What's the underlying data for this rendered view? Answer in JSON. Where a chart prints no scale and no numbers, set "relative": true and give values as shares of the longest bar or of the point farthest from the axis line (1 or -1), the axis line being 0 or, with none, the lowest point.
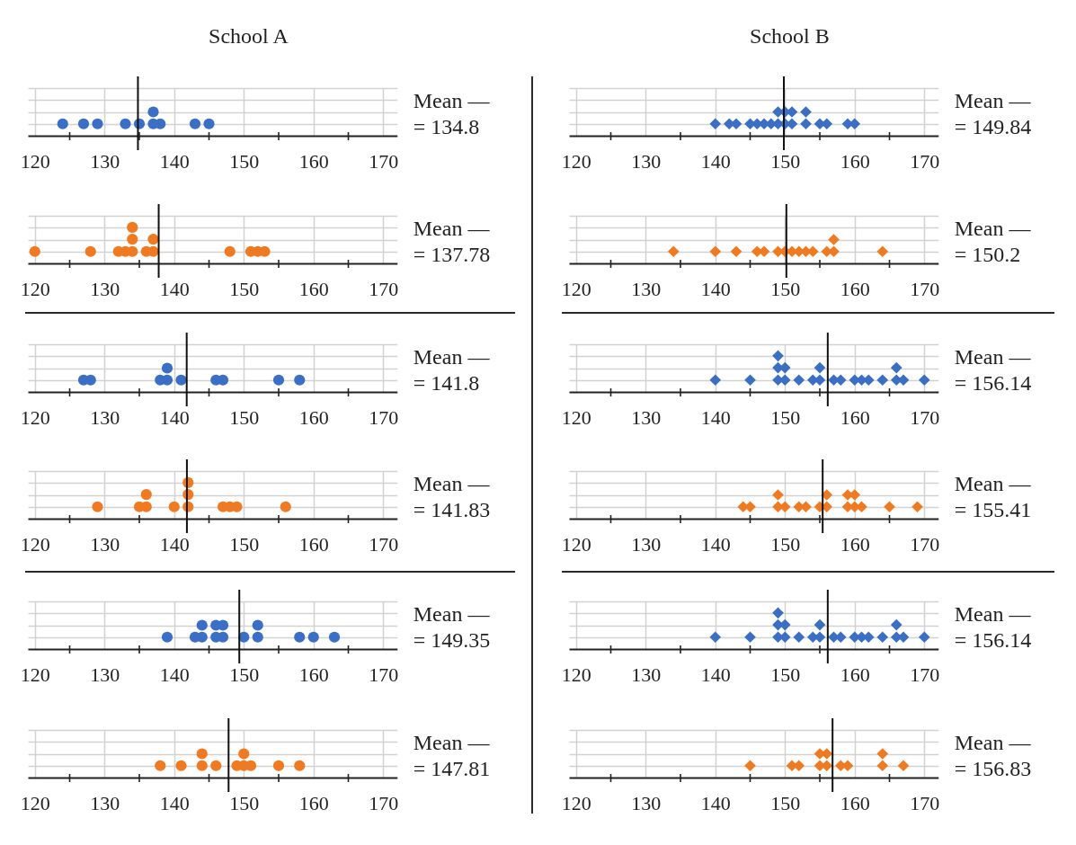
{
  "chart_data": [
    {
      "type": "scatter",
      "title": "School A",
      "relative": true,
      "x": [
        124,
        127,
        129,
        133,
        135,
        137,
        137,
        138,
        143,
        145
      ],
      "series": [
        {
          "color": "#3a6fc5",
          "values": [
            0.5,
            0.5,
            0.5,
            0.5,
            0.5,
            0.5,
            1,
            0.5,
            0.5,
            0.5
          ]
        }
      ],
      "xlim": [
        119,
        172
      ],
      "xticks": [
        120,
        {
          "value": 125,
          "label": null
        },
        130,
        {
          "value": 135,
          "label": null
        },
        140,
        {
          "value": 145,
          "label": null
        },
        150,
        {
          "value": 155,
          "label": null
        },
        160,
        {
          "value": 165,
          "label": null
        },
        170
      ],
      "tick_labels": "x",
      "grid": true,
      "marker": "circle",
      "ref_lines": [
        {
          "axis": "x",
          "value": 134.8,
          "label": "Mean —\n= 134.8",
          "color": "#111111"
        }
      ]
    },
    {
      "type": "scatter",
      "title": "School B",
      "relative": true,
      "x": [
        140,
        142,
        143,
        145,
        146,
        147,
        148,
        149,
        149,
        150,
        150,
        151,
        151,
        153,
        153,
        155,
        156,
        159,
        160
      ],
      "series": [
        {
          "color": "#3a6fc5",
          "values": [
            0.5,
            0.5,
            0.5,
            0.5,
            0.5,
            0.5,
            0.5,
            0.5,
            1,
            0.5,
            1,
            0.5,
            1,
            0.5,
            1,
            0.5,
            0.5,
            0.5,
            0.5
          ]
        }
      ],
      "xlim": [
        119,
        172
      ],
      "xticks": [
        120,
        {
          "value": 125,
          "label": null
        },
        130,
        {
          "value": 135,
          "label": null
        },
        140,
        {
          "value": 145,
          "label": null
        },
        150,
        {
          "value": 155,
          "label": null
        },
        160,
        {
          "value": 165,
          "label": null
        },
        170
      ],
      "tick_labels": "x",
      "grid": true,
      "marker": "diamond",
      "ref_lines": [
        {
          "axis": "x",
          "value": 149.84,
          "label": "Mean —\n= 149.84",
          "color": "#111111"
        }
      ]
    },
    {
      "type": "scatter",
      "relative": true,
      "x": [
        120,
        128,
        132,
        133,
        134,
        134,
        134,
        136,
        137,
        137,
        148,
        151,
        152,
        153
      ],
      "series": [
        {
          "color": "#f07a22",
          "values": [
            0.33,
            0.33,
            0.33,
            0.33,
            0.33,
            0.67,
            1,
            0.33,
            0.33,
            0.67,
            0.33,
            0.33,
            0.33,
            0.33
          ]
        }
      ],
      "xlim": [
        119,
        172
      ],
      "xticks": [
        120,
        {
          "value": 125,
          "label": null
        },
        130,
        {
          "value": 135,
          "label": null
        },
        140,
        {
          "value": 145,
          "label": null
        },
        150,
        {
          "value": 155,
          "label": null
        },
        160,
        {
          "value": 165,
          "label": null
        },
        170
      ],
      "tick_labels": "x",
      "grid": true,
      "marker": "circle",
      "ref_lines": [
        {
          "axis": "x",
          "value": 137.78,
          "label": "Mean —\n= 137.78",
          "color": "#111111"
        }
      ]
    },
    {
      "type": "scatter",
      "relative": true,
      "x": [
        134,
        140,
        143,
        146,
        147,
        149,
        150,
        151,
        152,
        153,
        154,
        156,
        157,
        157,
        164
      ],
      "series": [
        {
          "color": "#f07a22",
          "values": [
            0.5,
            0.5,
            0.5,
            0.5,
            0.5,
            0.5,
            0.5,
            0.5,
            0.5,
            0.5,
            0.5,
            0.5,
            0.5,
            1,
            0.5
          ]
        }
      ],
      "xlim": [
        119,
        172
      ],
      "xticks": [
        120,
        {
          "value": 125,
          "label": null
        },
        130,
        {
          "value": 135,
          "label": null
        },
        140,
        {
          "value": 145,
          "label": null
        },
        150,
        {
          "value": 155,
          "label": null
        },
        160,
        {
          "value": 165,
          "label": null
        },
        170
      ],
      "tick_labels": "x",
      "grid": true,
      "marker": "diamond",
      "ref_lines": [
        {
          "axis": "x",
          "value": 150.2,
          "label": "Mean —\n= 150.2",
          "color": "#111111"
        }
      ]
    },
    {
      "type": "scatter",
      "relative": true,
      "x": [
        127,
        128,
        138,
        139,
        139,
        141,
        146,
        147,
        155,
        158
      ],
      "series": [
        {
          "color": "#3a6fc5",
          "values": [
            0.5,
            0.5,
            0.5,
            0.5,
            1,
            0.5,
            0.5,
            0.5,
            0.5,
            0.5
          ]
        }
      ],
      "xlim": [
        119,
        172
      ],
      "xticks": [
        120,
        {
          "value": 125,
          "label": null
        },
        130,
        {
          "value": 135,
          "label": null
        },
        140,
        {
          "value": 145,
          "label": null
        },
        150,
        {
          "value": 155,
          "label": null
        },
        160,
        {
          "value": 165,
          "label": null
        },
        170
      ],
      "tick_labels": "x",
      "grid": true,
      "marker": "circle",
      "ref_lines": [
        {
          "axis": "x",
          "value": 141.8,
          "label": "Mean —\n= 141.8",
          "color": "#111111"
        }
      ]
    },
    {
      "type": "scatter",
      "relative": true,
      "x": [
        140,
        145,
        149,
        149,
        149,
        150,
        150,
        152,
        154,
        155,
        155,
        157,
        158,
        160,
        161,
        162,
        164,
        166,
        166,
        167,
        170
      ],
      "series": [
        {
          "color": "#3a6fc5",
          "values": [
            0.33,
            0.33,
            0.33,
            0.67,
            1,
            0.33,
            0.67,
            0.33,
            0.33,
            0.33,
            0.67,
            0.33,
            0.33,
            0.33,
            0.33,
            0.33,
            0.33,
            0.33,
            0.67,
            0.33,
            0.33
          ]
        }
      ],
      "xlim": [
        119,
        172
      ],
      "xticks": [
        120,
        {
          "value": 125,
          "label": null
        },
        130,
        {
          "value": 135,
          "label": null
        },
        140,
        {
          "value": 145,
          "label": null
        },
        150,
        {
          "value": 155,
          "label": null
        },
        160,
        {
          "value": 165,
          "label": null
        },
        170
      ],
      "tick_labels": "x",
      "grid": true,
      "marker": "diamond",
      "ref_lines": [
        {
          "axis": "x",
          "value": 156.14,
          "label": "Mean —\n= 156.14",
          "color": "#111111"
        }
      ]
    },
    {
      "type": "scatter",
      "relative": true,
      "x": [
        129,
        135,
        136,
        136,
        140,
        142,
        142,
        142,
        147,
        148,
        149,
        156
      ],
      "series": [
        {
          "color": "#f07a22",
          "values": [
            0.33,
            0.33,
            0.33,
            0.67,
            0.33,
            0.33,
            0.67,
            1,
            0.33,
            0.33,
            0.33,
            0.33
          ]
        }
      ],
      "xlim": [
        119,
        172
      ],
      "xticks": [
        120,
        {
          "value": 125,
          "label": null
        },
        130,
        {
          "value": 135,
          "label": null
        },
        140,
        {
          "value": 145,
          "label": null
        },
        150,
        {
          "value": 155,
          "label": null
        },
        160,
        {
          "value": 165,
          "label": null
        },
        170
      ],
      "tick_labels": "x",
      "grid": true,
      "marker": "circle",
      "ref_lines": [
        {
          "axis": "x",
          "value": 141.83,
          "label": "Mean —\n= 141.83",
          "color": "#111111"
        }
      ]
    },
    {
      "type": "scatter",
      "relative": true,
      "x": [
        144,
        145,
        149,
        149,
        150,
        152,
        153,
        155,
        156,
        156,
        159,
        159,
        160,
        160,
        161,
        165,
        169
      ],
      "series": [
        {
          "color": "#f07a22",
          "values": [
            0.5,
            0.5,
            0.5,
            1,
            0.5,
            0.5,
            0.5,
            0.5,
            0.5,
            1,
            0.5,
            1,
            0.5,
            1,
            0.5,
            0.5,
            0.5
          ]
        }
      ],
      "xlim": [
        119,
        172
      ],
      "xticks": [
        120,
        {
          "value": 125,
          "label": null
        },
        130,
        {
          "value": 135,
          "label": null
        },
        140,
        {
          "value": 145,
          "label": null
        },
        150,
        {
          "value": 155,
          "label": null
        },
        160,
        {
          "value": 165,
          "label": null
        },
        170
      ],
      "tick_labels": "x",
      "grid": true,
      "marker": "diamond",
      "ref_lines": [
        {
          "axis": "x",
          "value": 155.41,
          "label": "Mean —\n= 155.41",
          "color": "#111111"
        }
      ]
    },
    {
      "type": "scatter",
      "relative": true,
      "x": [
        139,
        143,
        144,
        144,
        146,
        146,
        147,
        147,
        150,
        152,
        152,
        158,
        160,
        163
      ],
      "series": [
        {
          "color": "#3a6fc5",
          "values": [
            0.5,
            0.5,
            0.5,
            1,
            0.5,
            1,
            0.5,
            1,
            0.5,
            0.5,
            1,
            0.5,
            0.5,
            0.5
          ]
        }
      ],
      "xlim": [
        119,
        172
      ],
      "xticks": [
        120,
        {
          "value": 125,
          "label": null
        },
        130,
        {
          "value": 135,
          "label": null
        },
        140,
        {
          "value": 145,
          "label": null
        },
        150,
        {
          "value": 155,
          "label": null
        },
        160,
        {
          "value": 165,
          "label": null
        },
        170
      ],
      "tick_labels": "x",
      "grid": true,
      "marker": "circle",
      "ref_lines": [
        {
          "axis": "x",
          "value": 149.35,
          "label": "Mean —\n= 149.35",
          "color": "#111111"
        }
      ]
    },
    {
      "type": "scatter",
      "relative": true,
      "x": [
        140,
        145,
        149,
        149,
        149,
        150,
        150,
        152,
        154,
        155,
        155,
        157,
        158,
        160,
        161,
        162,
        164,
        166,
        166,
        167,
        170
      ],
      "series": [
        {
          "color": "#3a6fc5",
          "values": [
            0.33,
            0.33,
            0.33,
            0.67,
            1,
            0.33,
            0.67,
            0.33,
            0.33,
            0.33,
            0.67,
            0.33,
            0.33,
            0.33,
            0.33,
            0.33,
            0.33,
            0.33,
            0.67,
            0.33,
            0.33
          ]
        }
      ],
      "xlim": [
        119,
        172
      ],
      "xticks": [
        120,
        {
          "value": 125,
          "label": null
        },
        130,
        {
          "value": 135,
          "label": null
        },
        140,
        {
          "value": 145,
          "label": null
        },
        150,
        {
          "value": 155,
          "label": null
        },
        160,
        {
          "value": 165,
          "label": null
        },
        170
      ],
      "tick_labels": "x",
      "grid": true,
      "marker": "diamond",
      "ref_lines": [
        {
          "axis": "x",
          "value": 156.14,
          "label": "Mean —\n= 156.14",
          "color": "#111111"
        }
      ]
    },
    {
      "type": "scatter",
      "relative": true,
      "x": [
        138,
        141,
        144,
        144,
        146,
        149,
        150,
        150,
        151,
        155,
        158
      ],
      "series": [
        {
          "color": "#f07a22",
          "values": [
            0.5,
            0.5,
            0.5,
            1,
            0.5,
            0.5,
            0.5,
            1,
            0.5,
            0.5,
            0.5
          ]
        }
      ],
      "xlim": [
        119,
        172
      ],
      "xticks": [
        120,
        {
          "value": 125,
          "label": null
        },
        130,
        {
          "value": 135,
          "label": null
        },
        140,
        {
          "value": 145,
          "label": null
        },
        150,
        {
          "value": 155,
          "label": null
        },
        160,
        {
          "value": 165,
          "label": null
        },
        170
      ],
      "tick_labels": "x",
      "grid": true,
      "marker": "circle",
      "ref_lines": [
        {
          "axis": "x",
          "value": 147.81,
          "label": "Mean —\n= 147.81",
          "color": "#111111"
        }
      ]
    },
    {
      "type": "scatter",
      "relative": true,
      "x": [
        145,
        151,
        152,
        155,
        155,
        156,
        156,
        158,
        159,
        164,
        164,
        167
      ],
      "series": [
        {
          "color": "#f07a22",
          "values": [
            0.5,
            0.5,
            0.5,
            0.5,
            1,
            0.5,
            1,
            0.5,
            0.5,
            0.5,
            1,
            0.5
          ]
        }
      ],
      "xlim": [
        119,
        172
      ],
      "xticks": [
        120,
        {
          "value": 125,
          "label": null
        },
        130,
        {
          "value": 135,
          "label": null
        },
        140,
        {
          "value": 145,
          "label": null
        },
        150,
        {
          "value": 155,
          "label": null
        },
        160,
        {
          "value": 165,
          "label": null
        },
        170
      ],
      "tick_labels": "x",
      "grid": true,
      "marker": "diamond",
      "ref_lines": [
        {
          "axis": "x",
          "value": 156.83,
          "label": "Mean —\n= 156.83",
          "color": "#111111"
        }
      ]
    }
  ]
}
